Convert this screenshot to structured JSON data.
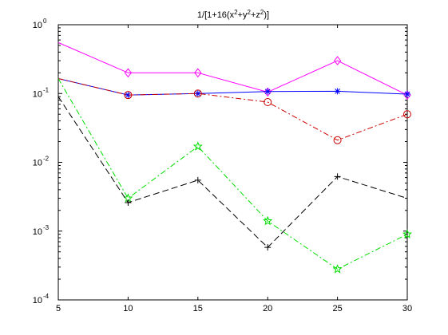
{
  "chart_data": {
    "type": "line",
    "title_parts": [
      {
        "t": "1/[1+16(x",
        "sup": false
      },
      {
        "t": "2",
        "sup": true
      },
      {
        "t": "+y",
        "sup": false
      },
      {
        "t": "2",
        "sup": true
      },
      {
        "t": "+z",
        "sup": false
      },
      {
        "t": "2",
        "sup": true
      },
      {
        "t": ")]",
        "sup": false
      }
    ],
    "xlabel": "",
    "ylabel": "",
    "x_scale": "linear",
    "y_scale": "log",
    "xlim": [
      5,
      30
    ],
    "ylim": [
      0.0001,
      1
    ],
    "x_ticks": [
      5,
      10,
      15,
      20,
      25,
      30
    ],
    "y_ticks": [
      {
        "value": 1,
        "base": "10",
        "exp": "0"
      },
      {
        "value": 0.1,
        "base": "10",
        "exp": "-1"
      },
      {
        "value": 0.01,
        "base": "10",
        "exp": "-2"
      },
      {
        "value": 0.001,
        "base": "10",
        "exp": "-3"
      },
      {
        "value": 0.0001,
        "base": "10",
        "exp": "-4"
      }
    ],
    "grid": false,
    "x": [
      5,
      10,
      15,
      20,
      25,
      30
    ],
    "series": [
      {
        "color": "#ff00ff",
        "dash": "",
        "marker": "diamond",
        "values": [
          0.55,
          0.2,
          0.2,
          0.105,
          0.3,
          0.095
        ]
      },
      {
        "color": "#0000ff",
        "dash": "",
        "marker": "star",
        "values": [
          0.165,
          0.095,
          0.1,
          0.107,
          0.108,
          0.098
        ]
      },
      {
        "color": "#cc0000",
        "dash": "7 3 2 3",
        "marker": "circle",
        "values": [
          0.165,
          0.095,
          0.1,
          0.075,
          0.021,
          0.05
        ]
      },
      {
        "color": "#00dd00",
        "dash": "7 3 2 3",
        "marker": "pentagram",
        "values": [
          0.165,
          0.003,
          0.017,
          0.0014,
          0.00028,
          0.0009
        ]
      },
      {
        "color": "#000000",
        "dash": "8 4",
        "marker": "plus",
        "values": [
          0.09,
          0.0026,
          0.0055,
          0.00058,
          0.0062,
          0.003
        ]
      }
    ]
  }
}
